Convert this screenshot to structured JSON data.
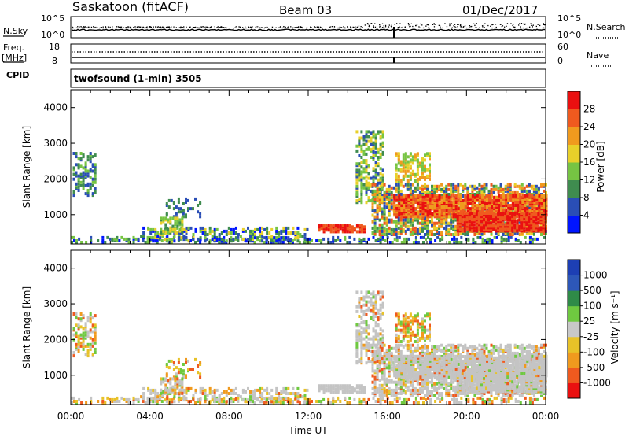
{
  "header": {
    "station": "Saskatoon (fitACF)",
    "beam": "Beam 03",
    "date": "01/Dec/2017"
  },
  "noise_panel": {
    "left_label": "N.Sky",
    "left_ticks": [
      "10^5",
      "10^0"
    ],
    "right_label": "N.Search",
    "right_ticks": [
      "10^5",
      "10^0"
    ]
  },
  "freq_panel": {
    "left_label_1": "Freq.",
    "left_label_2": "[MHz]",
    "left_ticks": [
      "18",
      "8"
    ],
    "cpid_label": "CPID",
    "right_label": "Nave",
    "right_ticks": [
      "60",
      "0"
    ],
    "value_mhz": 10.6,
    "nave": 26
  },
  "cpid_panel": {
    "text": "twofsound (1-min) 3505"
  },
  "colors": {
    "power_scale": [
      "#0015ff",
      "#2a4eb6",
      "#3f8c4f",
      "#76c443",
      "#e8d02a",
      "#f09a1e",
      "#ef5a1f",
      "#ea1010"
    ],
    "velocity_scale": [
      "#ea1010",
      "#ef5a1f",
      "#f09a1e",
      "#e8c228",
      "#c8c8c8",
      "#6fc940",
      "#2f8b48",
      "#2d57b8",
      "#1d3fb4"
    ],
    "ground_scatter": "#c4c4c4"
  },
  "chart_data": [
    {
      "type": "heatmap",
      "name": "power",
      "xlabel": "",
      "ylabel": "Slant Range [km]",
      "x_ticks": [
        "00:00",
        "04:00",
        "08:00",
        "12:00",
        "16:00",
        "20:00",
        "00:00"
      ],
      "x_range_hours": [
        0,
        24
      ],
      "y_ticks": [
        "1000",
        "2000",
        "3000",
        "4000"
      ],
      "ylim": [
        180,
        4500
      ],
      "colorbar": {
        "label": "Power [dB]",
        "ticks": [
          "4",
          "8",
          "12",
          "16",
          "20",
          "24",
          "28"
        ],
        "range": [
          0,
          32
        ]
      }
    },
    {
      "type": "heatmap",
      "name": "velocity",
      "xlabel": "Time UT",
      "ylabel": "Slant Range [km]",
      "x_ticks": [
        "00:00",
        "04:00",
        "08:00",
        "12:00",
        "16:00",
        "20:00",
        "00:00"
      ],
      "x_range_hours": [
        0,
        24
      ],
      "y_ticks": [
        "1000",
        "2000",
        "3000",
        "4000"
      ],
      "ylim": [
        180,
        4500
      ],
      "colorbar": {
        "label": "Velocity [m s⁻¹]",
        "ticks": [
          "1000",
          "500",
          "100",
          "25",
          "-25",
          "-100",
          "-500",
          "-1000"
        ]
      }
    }
  ]
}
